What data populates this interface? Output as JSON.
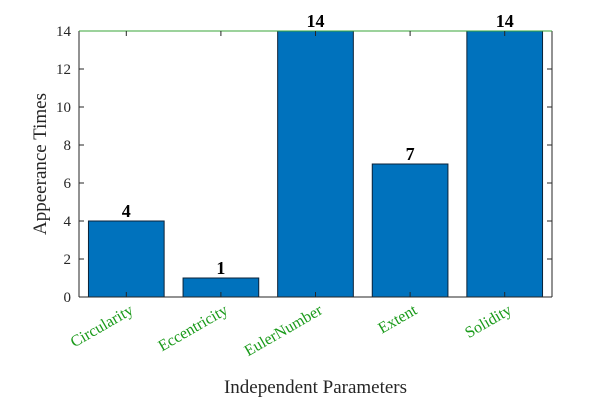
{
  "chart_data": {
    "type": "bar",
    "categories": [
      "Circularity",
      "Eccentricity",
      "EulerNumber",
      "Extent",
      "Solidity"
    ],
    "values": [
      4,
      1,
      14,
      7,
      14
    ],
    "data_labels": [
      "4",
      "1",
      "14",
      "7",
      "14"
    ],
    "xlabel": "Independent Parameters",
    "ylabel": "Appeerance Times",
    "ylim": [
      0,
      14
    ],
    "yticks": [
      0,
      2,
      4,
      6,
      8,
      10,
      12,
      14
    ],
    "ytick_labels": [
      "0",
      "2",
      "4",
      "6",
      "8",
      "10",
      "12",
      "14"
    ],
    "grid": false,
    "legend": "none",
    "colors": {
      "bar": "#0072bd",
      "category_label": "#1a9a1a",
      "axis": "#262626",
      "top_border": "#3aa63a"
    }
  }
}
